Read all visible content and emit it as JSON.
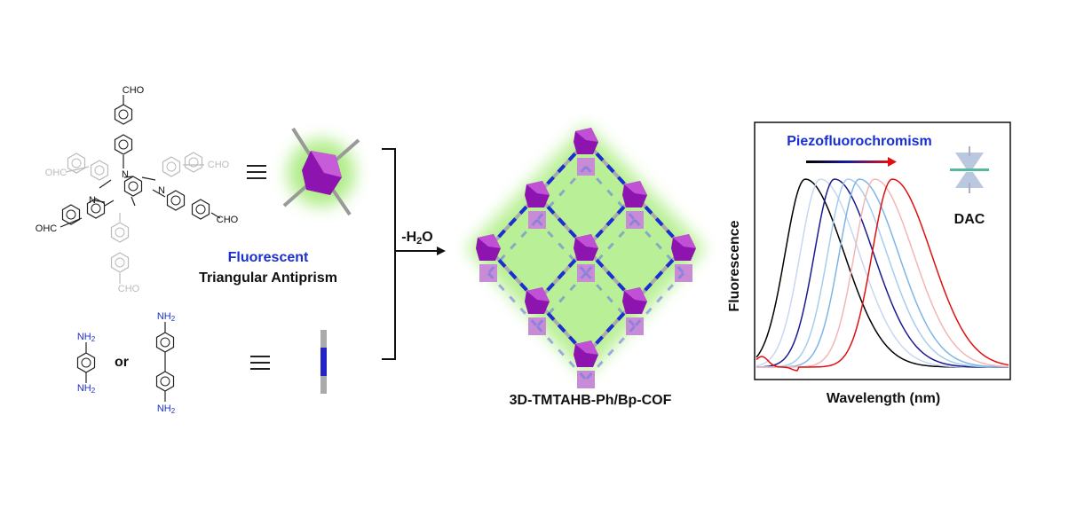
{
  "molecule": {
    "labels": [
      "CHO",
      "OHC",
      "CHO",
      "OHC",
      "CHO",
      "CHO"
    ],
    "nitrogen": [
      "N",
      "N",
      "N"
    ]
  },
  "node": {
    "name": "Fluorescent",
    "shape": "Triangular Antiprism"
  },
  "linkers": {
    "amine": "NH",
    "subscript": "2",
    "or": "or"
  },
  "reaction": {
    "prefix": "-H",
    "subscript": "2",
    "suffix": "O"
  },
  "product": "3D-TMTAHB-Ph/Bp-COF",
  "spectrum": {
    "title": "Piezofluorochromism",
    "cell": "DAC",
    "y_label": "Fluorescence",
    "x_label": "Wavelength (nm)"
  }
}
